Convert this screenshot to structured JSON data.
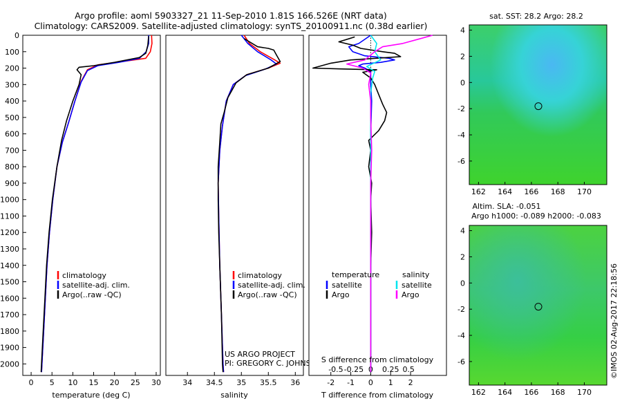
{
  "title_line1": "Argo profile: aoml 5903327_21 11-Sep-2010 1.81S 166.526E (NRT data)",
  "title_line2": "Climatology: CARS2009. Satellite-adjusted climatology: synTS_20100911.nc (0.38d earlier)",
  "credit": "©IMOS 02-Aug-2017 22:18:56",
  "project": {
    "line1": "US ARGO PROJECT",
    "line2": "PI: GREGORY C. JOHNSON"
  },
  "colors": {
    "climatology": "#ff0000",
    "satellite": "#0000ff",
    "argo": "#000000",
    "argo_salinity": "#ff00ff",
    "satellite_salinity": "#00e5ee"
  },
  "chart_data": [
    {
      "type": "line",
      "id": "temperature",
      "xlabel": "temperature (deg C)",
      "ylabel": "",
      "xlim": [
        -2,
        31
      ],
      "ylim": [
        2070,
        0
      ],
      "xticks": [
        0,
        5,
        10,
        15,
        20,
        25,
        30
      ],
      "yticks": [
        0,
        100,
        200,
        300,
        400,
        500,
        600,
        700,
        800,
        900,
        1000,
        1100,
        1200,
        1300,
        1400,
        1500,
        1600,
        1700,
        1800,
        1900,
        2000
      ],
      "legend": {
        "placement": "lower-center",
        "entries": [
          "climatology",
          "satellite-adj. clim.",
          "Argo(..raw -QC)"
        ]
      },
      "series": [
        {
          "name": "climatology",
          "color": "#ff0000",
          "points": [
            [
              28.9,
              0
            ],
            [
              29.0,
              50
            ],
            [
              28.6,
              100
            ],
            [
              27.5,
              140
            ],
            [
              22,
              160
            ],
            [
              16,
              180
            ],
            [
              13.5,
              210
            ],
            [
              12,
              280
            ],
            [
              10.5,
              400
            ],
            [
              9,
              530
            ],
            [
              7.5,
              650
            ],
            [
              6.2,
              800
            ],
            [
              5.2,
              1000
            ],
            [
              4.4,
              1200
            ],
            [
              3.8,
              1400
            ],
            [
              3.4,
              1600
            ],
            [
              3.0,
              1800
            ],
            [
              2.6,
              2000
            ],
            [
              2.5,
              2050
            ]
          ]
        },
        {
          "name": "satellite-adj. clim.",
          "color": "#0000ff",
          "points": [
            [
              28.2,
              0
            ],
            [
              28.2,
              50
            ],
            [
              27.6,
              100
            ],
            [
              26,
              140
            ],
            [
              21,
              165
            ],
            [
              16,
              185
            ],
            [
              13.5,
              215
            ],
            [
              12,
              285
            ],
            [
              10.5,
              400
            ],
            [
              9,
              530
            ],
            [
              7.5,
              650
            ],
            [
              6.2,
              800
            ],
            [
              5.2,
              1000
            ],
            [
              4.4,
              1200
            ],
            [
              3.8,
              1400
            ],
            [
              3.4,
              1600
            ],
            [
              3.0,
              1800
            ],
            [
              2.6,
              2000
            ],
            [
              2.5,
              2050
            ]
          ]
        },
        {
          "name": "Argo(..raw -QC)",
          "color": "#000000",
          "points": [
            [
              28.2,
              5
            ],
            [
              28.0,
              60
            ],
            [
              27.5,
              110
            ],
            [
              26,
              135
            ],
            [
              20,
              165
            ],
            [
              15,
              185
            ],
            [
              11.5,
              195
            ],
            [
              11,
              210
            ],
            [
              12,
              240
            ],
            [
              11.5,
              300
            ],
            [
              10,
              400
            ],
            [
              8.5,
              520
            ],
            [
              7.3,
              640
            ],
            [
              6.2,
              800
            ],
            [
              5.1,
              1000
            ],
            [
              4.3,
              1200
            ],
            [
              3.7,
              1400
            ],
            [
              3.3,
              1600
            ],
            [
              2.9,
              1800
            ],
            [
              2.5,
              2000
            ],
            [
              2.4,
              2050
            ]
          ]
        }
      ]
    },
    {
      "type": "line",
      "id": "salinity",
      "xlabel": "salinity",
      "ylabel": "",
      "xlim": [
        33.6,
        36.15
      ],
      "ylim": [
        2070,
        0
      ],
      "xticks": [
        34,
        34.5,
        35,
        35.5,
        36
      ],
      "legend": {
        "placement": "lower-right",
        "entries": [
          "climatology",
          "satellite-adj. clim.",
          "Argo(..raw -QC)"
        ]
      },
      "series": [
        {
          "name": "climatology",
          "color": "#ff0000",
          "points": [
            [
              35.05,
              0
            ],
            [
              35.15,
              50
            ],
            [
              35.35,
              100
            ],
            [
              35.62,
              150
            ],
            [
              35.72,
              170
            ],
            [
              35.5,
              200
            ],
            [
              35.1,
              240
            ],
            [
              34.85,
              300
            ],
            [
              34.72,
              400
            ],
            [
              34.65,
              550
            ],
            [
              34.6,
              700
            ],
            [
              34.57,
              900
            ],
            [
              34.58,
              1100
            ],
            [
              34.6,
              1400
            ],
            [
              34.63,
              1700
            ],
            [
              34.66,
              2000
            ],
            [
              34.67,
              2050
            ]
          ]
        },
        {
          "name": "satellite-adj. clim.",
          "color": "#0000ff",
          "points": [
            [
              35.0,
              0
            ],
            [
              35.12,
              50
            ],
            [
              35.3,
              100
            ],
            [
              35.55,
              150
            ],
            [
              35.65,
              175
            ],
            [
              35.45,
              205
            ],
            [
              35.08,
              245
            ],
            [
              34.85,
              300
            ],
            [
              34.72,
              400
            ],
            [
              34.65,
              550
            ],
            [
              34.6,
              700
            ],
            [
              34.57,
              900
            ],
            [
              34.58,
              1100
            ],
            [
              34.6,
              1400
            ],
            [
              34.63,
              1700
            ],
            [
              34.66,
              2000
            ],
            [
              34.67,
              2050
            ]
          ]
        },
        {
          "name": "Argo(..raw -QC)",
          "color": "#000000",
          "points": [
            [
              35.05,
              20
            ],
            [
              35.3,
              70
            ],
            [
              35.5,
              80
            ],
            [
              35.6,
              90
            ],
            [
              35.65,
              120
            ],
            [
              35.72,
              160
            ],
            [
              35.5,
              200
            ],
            [
              35.1,
              240
            ],
            [
              34.9,
              290
            ],
            [
              34.75,
              380
            ],
            [
              34.68,
              470
            ],
            [
              34.62,
              540
            ],
            [
              34.6,
              650
            ],
            [
              34.57,
              800
            ],
            [
              34.57,
              1000
            ],
            [
              34.58,
              1200
            ],
            [
              34.6,
              1400
            ],
            [
              34.63,
              1700
            ],
            [
              34.65,
              2000
            ],
            [
              34.66,
              2050
            ]
          ]
        }
      ]
    },
    {
      "type": "line",
      "id": "difference",
      "xlabel": "T difference from climatology",
      "xlabel2": "S difference from climatology",
      "xlim": [
        -3.1,
        3.8
      ],
      "ylim": [
        2070,
        0
      ],
      "xticks": [
        -2,
        -1,
        0,
        1,
        2
      ],
      "s_xticks": [
        {
          "label": "-0.5",
          "x": -1.75
        },
        {
          "label": "-0.25",
          "x": -0.85
        },
        {
          "label": "0",
          "x": 0
        },
        {
          "label": "0.25",
          "x": 1.0
        },
        {
          "label": "0.5",
          "x": 1.9
        }
      ],
      "legend": {
        "placement": "lower",
        "headers": [
          "temperature",
          "salinity"
        ],
        "entries": [
          "satellite",
          "Argo",
          "satellite",
          "Argo"
        ]
      },
      "series": [
        {
          "name": "satellite",
          "color": "#0000ff",
          "points": [
            [
              0,
              0
            ],
            [
              -0.6,
              50
            ],
            [
              -1.1,
              70
            ],
            [
              -0.9,
              100
            ],
            [
              -0.3,
              125
            ],
            [
              0.9,
              140
            ],
            [
              1.2,
              150
            ],
            [
              0.5,
              165
            ],
            [
              -0.4,
              175
            ],
            [
              -0.6,
              185
            ],
            [
              -0.3,
              200
            ],
            [
              0,
              220
            ],
            [
              0,
              300
            ],
            [
              0.05,
              400
            ],
            [
              0,
              600
            ],
            [
              0,
              900
            ],
            [
              0,
              1200
            ],
            [
              0,
              1500
            ],
            [
              0,
              1800
            ],
            [
              0,
              2050
            ]
          ]
        },
        {
          "name": "Argo",
          "color": "#000000",
          "points": [
            [
              -0.8,
              10
            ],
            [
              -1.6,
              40
            ],
            [
              -0.9,
              60
            ],
            [
              -0.5,
              80
            ],
            [
              0.6,
              100
            ],
            [
              1.2,
              110
            ],
            [
              1.5,
              130
            ],
            [
              -1,
              150
            ],
            [
              -2,
              170
            ],
            [
              -2.9,
              200
            ],
            [
              -1.5,
              205
            ],
            [
              0.3,
              210
            ],
            [
              -0.4,
              225
            ],
            [
              0,
              260
            ],
            [
              0.2,
              300
            ],
            [
              0.4,
              360
            ],
            [
              0.6,
              420
            ],
            [
              0.8,
              470
            ],
            [
              0.7,
              520
            ],
            [
              0.4,
              580
            ],
            [
              -0.1,
              640
            ],
            [
              0,
              700
            ],
            [
              -0.1,
              800
            ],
            [
              0.05,
              900
            ],
            [
              0,
              1000
            ],
            [
              0.05,
              1200
            ],
            [
              0,
              1400
            ],
            [
              0,
              1600
            ],
            [
              0,
              1800
            ],
            [
              0,
              2050
            ]
          ]
        },
        {
          "name": "satellite",
          "color": "#00e5ee",
          "points": [
            [
              0,
              0
            ],
            [
              0.3,
              50
            ],
            [
              0.2,
              100
            ],
            [
              0.5,
              150
            ],
            [
              -0.2,
              190
            ],
            [
              0.2,
              220
            ],
            [
              0.1,
              260
            ],
            [
              0,
              350
            ],
            [
              0,
              500
            ],
            [
              0,
              800
            ],
            [
              0,
              1100
            ],
            [
              0,
              1400
            ],
            [
              0,
              1700
            ],
            [
              0,
              2050
            ]
          ]
        },
        {
          "name": "Argo",
          "color": "#ff00ff",
          "points": [
            [
              3.1,
              0
            ],
            [
              2.5,
              20
            ],
            [
              1.6,
              50
            ],
            [
              0.6,
              70
            ],
            [
              0.2,
              100
            ],
            [
              -0.3,
              150
            ],
            [
              -1.2,
              175
            ],
            [
              -0.4,
              200
            ],
            [
              0,
              230
            ],
            [
              -0.1,
              300
            ],
            [
              0,
              400
            ],
            [
              0,
              500
            ],
            [
              0.05,
              700
            ],
            [
              0,
              900
            ],
            [
              0,
              1200
            ],
            [
              0,
              1500
            ],
            [
              0,
              1800
            ],
            [
              0,
              2050
            ]
          ]
        }
      ]
    },
    {
      "type": "heatmap",
      "id": "sst",
      "title": "sat. SST: 28.2  Argo: 28.2",
      "xlim": [
        161.3,
        171.7
      ],
      "ylim": [
        -7.8,
        4.4
      ],
      "xticks": [
        162,
        164,
        166,
        168,
        170
      ],
      "yticks": [
        4,
        2,
        0,
        -2,
        -4,
        -6
      ],
      "marker": {
        "lon": 166.526,
        "lat": -1.81
      }
    },
    {
      "type": "heatmap",
      "id": "sla",
      "title": "Altim. SLA: -0.051",
      "title2": "Argo h1000: -0.089 h2000: -0.083",
      "xlim": [
        161.3,
        171.7
      ],
      "ylim": [
        -7.8,
        4.4
      ],
      "xticks": [
        162,
        164,
        166,
        168,
        170
      ],
      "yticks": [
        4,
        2,
        0,
        -2,
        -4,
        -6
      ],
      "marker": {
        "lon": 166.526,
        "lat": -1.81
      }
    }
  ]
}
